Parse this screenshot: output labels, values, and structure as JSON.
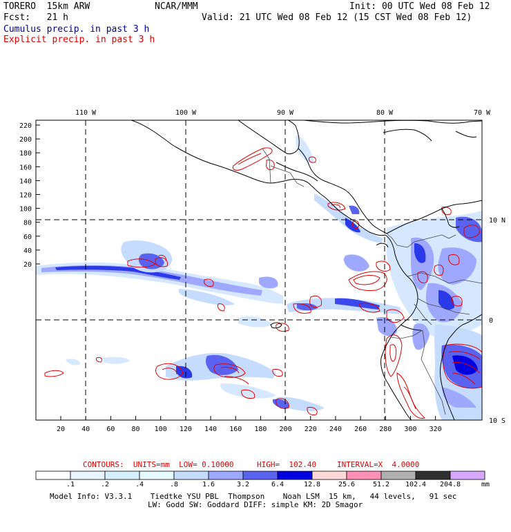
{
  "header": {
    "model": "TORERO  15km ARW",
    "org": "NCAR/MMM",
    "init": "Init: 00 UTC Wed 08 Feb 12",
    "fcst": "Fcst:   21 h",
    "valid": "Valid: 21 UTC Wed 08 Feb 12 (15 CST Wed 08 Feb 12)",
    "cumulus": "Cumulus precip. in past 3 h",
    "explicit": "Explicit precip. in past 3 h"
  },
  "map": {
    "lon_labels": [
      "110 W",
      "100 W",
      "90 W",
      "80 W",
      "70 W"
    ],
    "lat_labels": [
      "10 N",
      "0",
      "10 S"
    ],
    "y_ticks": [
      "220",
      "200",
      "180",
      "160",
      "140",
      "120",
      "100",
      "80",
      "60",
      "40",
      "20"
    ],
    "x_ticks": [
      "20",
      "40",
      "60",
      "80",
      "100",
      "120",
      "140",
      "160",
      "180",
      "200",
      "220",
      "240",
      "260",
      "280",
      "300",
      "320"
    ]
  },
  "contours": {
    "units_label": "CONTOURS:  UNITS=mm  LOW= 0.10000",
    "high_label": "HIGH=  102.40",
    "interval_label": "INTERVAL=X  4.0000"
  },
  "colorbar": {
    "labels": [
      ".1",
      ".2",
      ".4",
      ".8",
      "1.6",
      "3.2",
      "6.4",
      "12.8",
      "25.6",
      "51.2",
      "102.4",
      "204.8"
    ],
    "unit": "mm",
    "colors": [
      "#ffffff",
      "#eaf4ff",
      "#d6f0ff",
      "#e6fbff",
      "#c5dcff",
      "#9fa8ff",
      "#5a63f0",
      "#0000e0",
      "#ffd8d8",
      "#ff90b8",
      "#b0b0b0",
      "#303030",
      "#d8a8ff"
    ]
  },
  "footer": {
    "line1": "Model Info: V3.3.1    Tiedtke YSU PBL  Thompson    Noah LSM  15 km,   44 levels,   91 sec",
    "line2": "LW: Godd SW: Goddard DIFF: simple KM: 2D Smagor"
  }
}
